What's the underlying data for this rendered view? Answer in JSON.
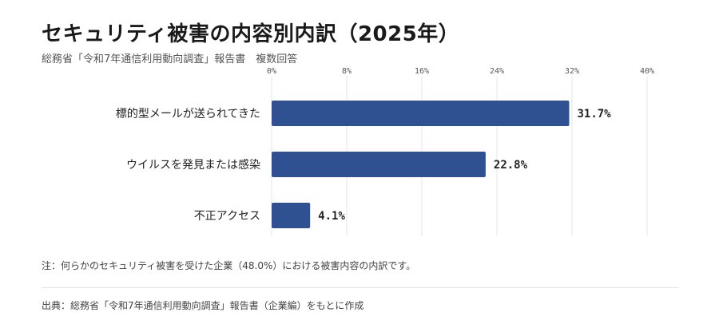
{
  "title": "セキュリティ被害の内容別内訳（2025年）",
  "subtitle": "総務省「令和7年通信利用動向調査」報告書　複数回答",
  "note": "注：何らかのセキュリティ被害を受けた企業（48.0%）における被害内容の内訳です。",
  "source": "出典：総務省「令和7年通信利用動向調査」報告書（企業編）をもとに作成",
  "colors": {
    "bar": "#2f5192",
    "grid": "#e6e6e6",
    "axis": "#555555"
  },
  "chart_data": {
    "type": "bar",
    "orientation": "horizontal",
    "categories": [
      "標的型メールが送られてきた",
      "ウイルスを発見または感染",
      "不正アクセス"
    ],
    "values": [
      31.7,
      22.8,
      4.1
    ],
    "value_labels": [
      "31.7%",
      "22.8%",
      "4.1%"
    ],
    "xlim": [
      0,
      40
    ],
    "xticks": [
      "0%",
      "8%",
      "16%",
      "24%",
      "32%",
      "40%"
    ],
    "tick_values": [
      0,
      8,
      16,
      24,
      32,
      40
    ],
    "x_axis_position": "top",
    "grid": true,
    "legend": "none"
  }
}
